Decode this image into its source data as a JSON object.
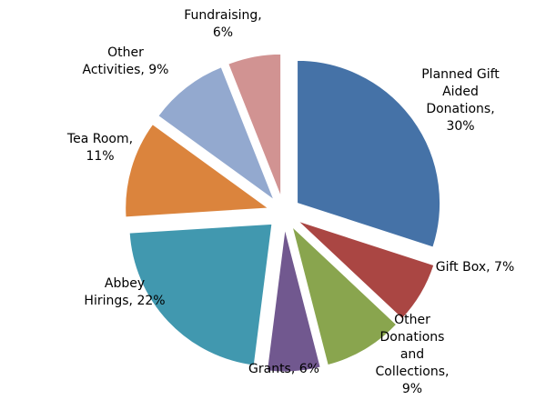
{
  "chart_data": {
    "type": "pie",
    "title": "",
    "start_angle_deg": 0,
    "direction": "clockwise",
    "exploded": true,
    "data_labels": "category-and-percent",
    "legend": "none",
    "slices": [
      {
        "name": "Planned Gift Aided Donations",
        "value": 30,
        "label_lines": [
          "Planned Gift",
          "Aided",
          "Donations,",
          "30%"
        ],
        "color": "#4572A7"
      },
      {
        "name": "Gift Box",
        "value": 7,
        "label_lines": [
          "Gift Box, 7%"
        ],
        "color": "#AA4643"
      },
      {
        "name": "Other Donations and Collections",
        "value": 9,
        "label_lines": [
          "Other",
          "Donations",
          "and",
          "Collections,",
          "9%"
        ],
        "color": "#89A54E"
      },
      {
        "name": "Grants",
        "value": 6,
        "label_lines": [
          "Grants, 6%"
        ],
        "color": "#71588F"
      },
      {
        "name": "Abbey Hirings",
        "value": 22,
        "label_lines": [
          "Abbey",
          "Hirings, 22%"
        ],
        "color": "#4198AF"
      },
      {
        "name": "Tea Room",
        "value": 11,
        "label_lines": [
          "Tea Room,",
          "11%"
        ],
        "color": "#DB843D"
      },
      {
        "name": "Other Activities",
        "value": 9,
        "label_lines": [
          "Other",
          "Activities, 9%"
        ],
        "color": "#93A9CF"
      },
      {
        "name": "Fundraising",
        "value": 6,
        "label_lines": [
          "Fundraising,",
          "6%"
        ],
        "color": "#D19392"
      }
    ]
  }
}
